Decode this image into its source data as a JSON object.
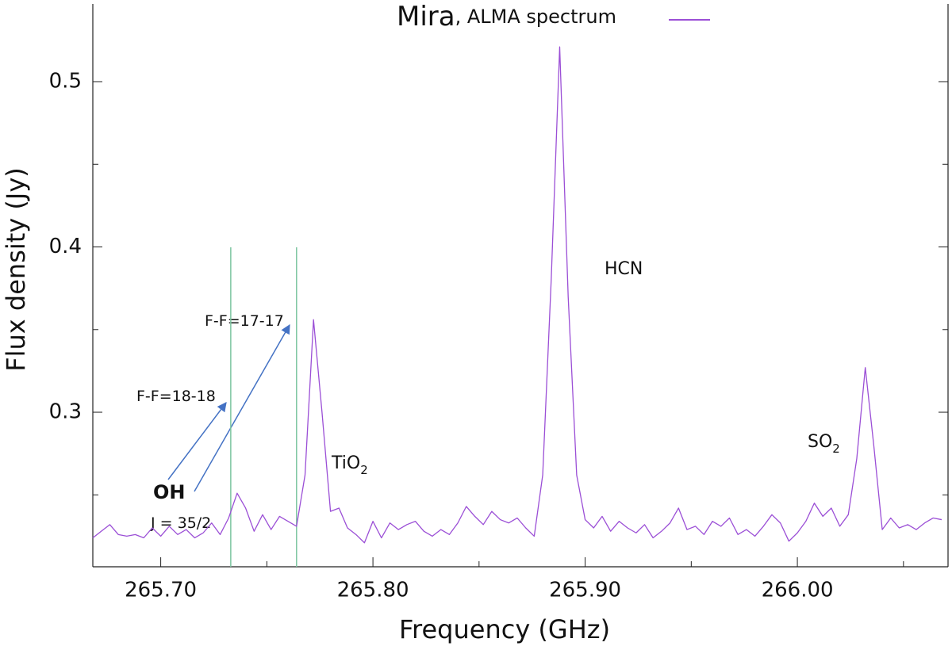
{
  "chart_data": {
    "type": "line",
    "xlabel": "Frequency (GHz)",
    "ylabel": "Flux density (Jy)",
    "x": [
      265.668,
      265.672,
      265.676,
      265.68,
      265.684,
      265.688,
      265.692,
      265.696,
      265.7,
      265.704,
      265.708,
      265.712,
      265.716,
      265.72,
      265.724,
      265.728,
      265.732,
      265.736,
      265.74,
      265.744,
      265.748,
      265.752,
      265.756,
      265.76,
      265.764,
      265.768,
      265.772,
      265.776,
      265.78,
      265.784,
      265.788,
      265.792,
      265.796,
      265.8,
      265.804,
      265.808,
      265.812,
      265.816,
      265.82,
      265.824,
      265.828,
      265.832,
      265.836,
      265.84,
      265.844,
      265.848,
      265.852,
      265.856,
      265.86,
      265.864,
      265.868,
      265.872,
      265.876,
      265.88,
      265.884,
      265.888,
      265.892,
      265.896,
      265.9,
      265.904,
      265.908,
      265.912,
      265.916,
      265.92,
      265.924,
      265.928,
      265.932,
      265.936,
      265.94,
      265.944,
      265.948,
      265.952,
      265.956,
      265.96,
      265.964,
      265.968,
      265.972,
      265.976,
      265.98,
      265.984,
      265.988,
      265.992,
      265.996,
      266.0,
      266.004,
      266.008,
      266.012,
      266.016,
      266.02,
      266.024,
      266.028,
      266.032,
      266.036,
      266.04,
      266.044,
      266.048,
      266.052,
      266.056,
      266.06,
      266.064,
      266.068
    ],
    "series": [
      {
        "name": "Mira",
        "legend_note": ", ALMA spectrum",
        "color": "#9b4fd6",
        "values": [
          0.224,
          0.228,
          0.232,
          0.226,
          0.225,
          0.226,
          0.224,
          0.23,
          0.225,
          0.231,
          0.226,
          0.229,
          0.224,
          0.227,
          0.233,
          0.226,
          0.236,
          0.251,
          0.242,
          0.228,
          0.238,
          0.229,
          0.237,
          0.234,
          0.231,
          0.262,
          0.356,
          0.3,
          0.24,
          0.242,
          0.23,
          0.226,
          0.221,
          0.234,
          0.224,
          0.233,
          0.229,
          0.232,
          0.234,
          0.228,
          0.225,
          0.229,
          0.226,
          0.233,
          0.243,
          0.237,
          0.232,
          0.24,
          0.235,
          0.233,
          0.236,
          0.23,
          0.225,
          0.262,
          0.38,
          0.521,
          0.37,
          0.262,
          0.235,
          0.23,
          0.237,
          0.228,
          0.234,
          0.23,
          0.227,
          0.232,
          0.224,
          0.228,
          0.233,
          0.242,
          0.229,
          0.231,
          0.226,
          0.234,
          0.231,
          0.236,
          0.226,
          0.229,
          0.225,
          0.231,
          0.238,
          0.233,
          0.222,
          0.227,
          0.234,
          0.245,
          0.237,
          0.242,
          0.231,
          0.238,
          0.272,
          0.327,
          0.28,
          0.229,
          0.236,
          0.23,
          0.232,
          0.229,
          0.233,
          0.236,
          0.235
        ]
      }
    ],
    "xlim": [
      265.668,
      266.071
    ],
    "ylim": [
      0.2065,
      0.547
    ],
    "xticks": [
      {
        "value": 265.7,
        "label": "265.70"
      },
      {
        "value": 265.8,
        "label": "265.80"
      },
      {
        "value": 265.9,
        "label": "265.90"
      },
      {
        "value": 266.0,
        "label": "266.00"
      }
    ],
    "xticks_minor": [
      265.75,
      265.85,
      265.95,
      266.05
    ],
    "yticks": [
      0.3,
      0.4,
      0.5
    ],
    "yticks_minor": [
      0.25,
      0.35,
      0.45
    ],
    "markers": [
      265.733,
      265.764
    ],
    "marker_color": "#7cc5a0",
    "annotations": [
      {
        "text": "F-F=17-17"
      },
      {
        "text": "F-F=18-18"
      },
      {
        "text": "OH"
      },
      {
        "text": "J = 35/2"
      },
      {
        "text": "TiO",
        "sub": "2"
      },
      {
        "text": "HCN"
      },
      {
        "text": "SO",
        "sub": "2"
      }
    ]
  }
}
